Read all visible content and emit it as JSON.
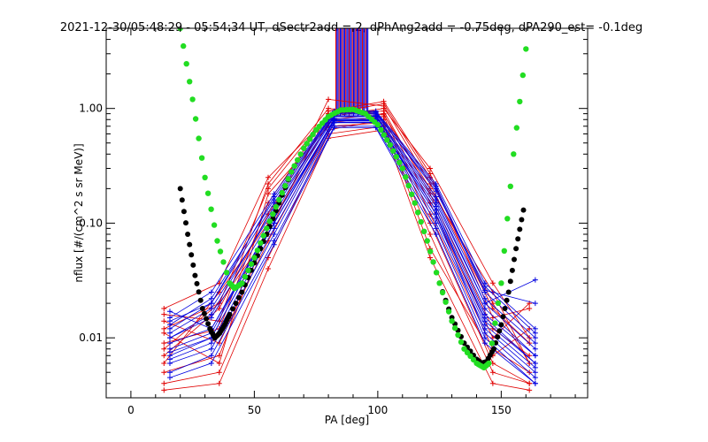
{
  "chart_data": {
    "type": "line",
    "title": "2021-12-30/05:48:29 - 05:54:34 UT, dSectr2add = 2, dPhAng2add = -0.75deg, dPA290_est=  -0.1deg",
    "xlabel": "PA [deg]",
    "ylabel": "nflux [#/(cm^2 s sr MeV)]",
    "xlim": [
      -10,
      185
    ],
    "ylim": [
      0.003,
      5
    ],
    "yscale": "log",
    "x_ticks": [
      "0",
      "50",
      "100",
      "150"
    ],
    "y_ticks": [
      "0.01",
      "0.10",
      "1.00"
    ],
    "colors": {
      "red": "#e00000",
      "blue": "#0000e0",
      "green": "#22dd22",
      "black": "#000000"
    },
    "green_fit": {
      "x": [
        20,
        25,
        30,
        35,
        40,
        42,
        45,
        50,
        55,
        60,
        65,
        70,
        75,
        80,
        85,
        90,
        95,
        100,
        105,
        110,
        115,
        120,
        125,
        130,
        135,
        140,
        143,
        145,
        150,
        155,
        160
      ],
      "y": [
        5.0,
        1.2,
        0.25,
        0.07,
        0.03,
        0.027,
        0.03,
        0.05,
        0.09,
        0.16,
        0.28,
        0.45,
        0.65,
        0.85,
        0.97,
        0.98,
        0.9,
        0.72,
        0.48,
        0.3,
        0.15,
        0.07,
        0.03,
        0.014,
        0.008,
        0.006,
        0.0055,
        0.006,
        0.03,
        0.4,
        3.3
      ]
    },
    "black_fit": {
      "x": [
        20,
        23,
        26,
        29,
        32,
        34,
        36,
        38,
        40,
        45,
        50,
        55,
        60,
        65,
        70,
        75,
        80,
        85,
        90,
        95,
        100,
        105,
        110,
        115,
        120,
        125,
        130,
        135,
        140,
        142,
        144,
        147,
        150,
        153,
        156,
        159
      ],
      "y": [
        0.2,
        0.08,
        0.035,
        0.018,
        0.012,
        0.01,
        0.011,
        0.013,
        0.016,
        0.025,
        0.045,
        0.08,
        0.15,
        0.28,
        0.45,
        0.65,
        0.85,
        0.97,
        0.98,
        0.9,
        0.72,
        0.48,
        0.3,
        0.15,
        0.07,
        0.03,
        0.015,
        0.009,
        0.0065,
        0.006,
        0.0062,
        0.008,
        0.013,
        0.025,
        0.06,
        0.13
      ]
    },
    "red_curves": [
      [
        0.012,
        0.02,
        0.2,
        0.9,
        1.1,
        0.25,
        0.02,
        0.006
      ],
      [
        0.005,
        0.007,
        0.09,
        0.75,
        0.85,
        0.12,
        0.008,
        0.005
      ],
      [
        0.018,
        0.03,
        0.25,
        0.85,
        1.0,
        0.3,
        0.03,
        0.01
      ],
      [
        0.004,
        0.005,
        0.05,
        0.6,
        0.7,
        0.08,
        0.005,
        0.004
      ],
      [
        0.009,
        0.012,
        0.15,
        0.9,
        0.95,
        0.18,
        0.012,
        0.007
      ],
      [
        0.007,
        0.018,
        0.12,
        0.8,
        0.9,
        0.15,
        0.01,
        0.02
      ],
      [
        0.014,
        0.009,
        0.07,
        0.65,
        0.8,
        0.1,
        0.006,
        0.004
      ],
      [
        0.006,
        0.025,
        0.1,
        1.2,
        1.05,
        0.22,
        0.018,
        0.009
      ],
      [
        0.011,
        0.006,
        0.18,
        0.7,
        0.75,
        0.06,
        0.007,
        0.012
      ],
      [
        0.016,
        0.014,
        0.22,
        1.0,
        0.88,
        0.2,
        0.025,
        0.006
      ],
      [
        0.0035,
        0.004,
        0.04,
        0.55,
        0.65,
        0.05,
        0.004,
        0.0035
      ],
      [
        0.008,
        0.02,
        0.08,
        0.95,
        1.15,
        0.27,
        0.015,
        0.018
      ]
    ],
    "blue_curves": [
      [
        0.01,
        0.015,
        0.12,
        0.85,
        0.85,
        0.15,
        0.02,
        0.008
      ],
      [
        0.007,
        0.01,
        0.1,
        0.8,
        0.8,
        0.12,
        0.015,
        0.006
      ],
      [
        0.012,
        0.02,
        0.15,
        0.9,
        0.9,
        0.2,
        0.025,
        0.01
      ],
      [
        0.006,
        0.008,
        0.08,
        0.75,
        0.75,
        0.1,
        0.012,
        0.005
      ],
      [
        0.009,
        0.012,
        0.1,
        0.82,
        0.82,
        0.14,
        0.018,
        0.007
      ],
      [
        0.015,
        0.025,
        0.18,
        0.95,
        0.95,
        0.22,
        0.03,
        0.012
      ],
      [
        0.005,
        0.007,
        0.07,
        0.7,
        0.7,
        0.09,
        0.01,
        0.004
      ],
      [
        0.011,
        0.018,
        0.13,
        0.88,
        0.88,
        0.17,
        0.022,
        0.009
      ],
      [
        0.008,
        0.011,
        0.11,
        0.78,
        0.78,
        0.13,
        0.014,
        0.006
      ],
      [
        0.013,
        0.022,
        0.16,
        0.92,
        0.92,
        0.19,
        0.028,
        0.011
      ],
      [
        0.0045,
        0.006,
        0.065,
        0.68,
        0.68,
        0.08,
        0.009,
        0.004
      ],
      [
        0.01,
        0.016,
        0.14,
        0.86,
        0.86,
        0.16,
        0.02,
        0.032
      ],
      [
        0.017,
        0.012,
        0.11,
        0.8,
        0.8,
        0.13,
        0.016,
        0.007
      ],
      [
        0.0065,
        0.009,
        0.09,
        0.76,
        0.76,
        0.11,
        0.013,
        0.0055
      ],
      [
        0.014,
        0.02,
        0.17,
        0.93,
        0.93,
        0.21,
        0.026,
        0.02
      ],
      [
        0.0075,
        0.01,
        0.1,
        0.79,
        0.79,
        0.12,
        0.011,
        0.0045
      ]
    ]
  }
}
